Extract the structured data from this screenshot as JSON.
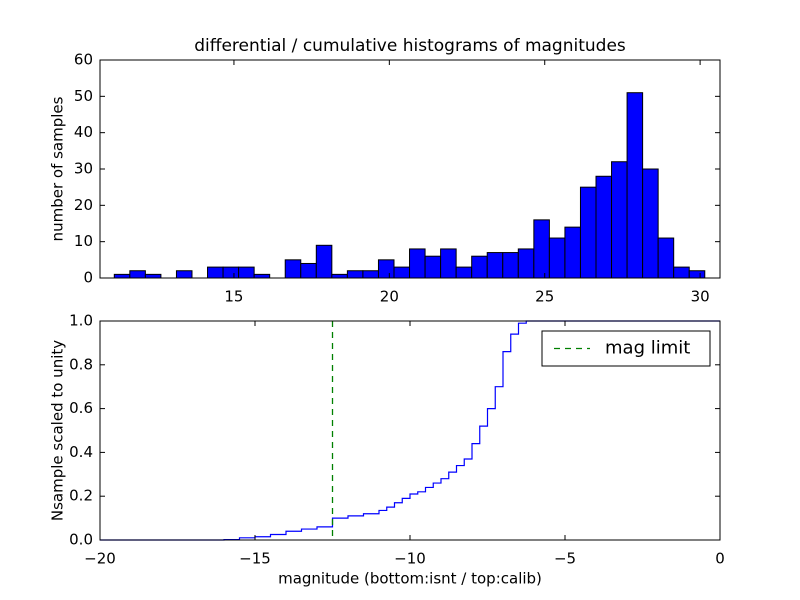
{
  "chart_data": [
    {
      "type": "histogram",
      "title": "differential / cumulative histograms of magnitudes",
      "y_label": "number of samples",
      "bins": [
        11.15,
        11.65,
        12.15,
        12.65,
        13.15,
        13.65,
        14.15,
        14.65,
        15.15,
        15.65,
        16.15,
        16.65,
        17.15,
        17.65,
        18.15,
        18.65,
        19.15,
        19.65,
        20.15,
        20.65,
        21.15,
        21.65,
        22.15,
        22.65,
        23.15,
        23.65,
        24.15,
        24.65,
        25.15,
        25.65,
        26.15,
        26.65,
        27.15,
        27.65,
        28.15,
        28.65,
        29.15,
        29.65,
        30.15
      ],
      "values": [
        1,
        2,
        1,
        0,
        2,
        0,
        3,
        3,
        3,
        1,
        0,
        5,
        4,
        9,
        1,
        2,
        2,
        5,
        3,
        8,
        6,
        8,
        3,
        6,
        7,
        7,
        8,
        16,
        11,
        14,
        25,
        28,
        32,
        51,
        30,
        11,
        3,
        2
      ],
      "color": "#0000ff",
      "xlim": [
        10.69,
        30.64
      ],
      "xticks": [
        15,
        20,
        25,
        30
      ],
      "ylim": [
        0,
        60
      ],
      "yticks": [
        0,
        10,
        20,
        30,
        40,
        50,
        60
      ]
    },
    {
      "type": "line",
      "drawstyle": "steps-post",
      "x_label": "magnitude (bottom:isnt / top:calib)",
      "y_label": "Nsample scaled to unity",
      "x": [
        -20,
        -16,
        -15.5,
        -15,
        -14.5,
        -14,
        -13.5,
        -13,
        -12.5,
        -12,
        -11.5,
        -11,
        -10.75,
        -10.5,
        -10.25,
        -10,
        -9.75,
        -9.5,
        -9.25,
        -9,
        -8.75,
        -8.5,
        -8.25,
        -8,
        -7.75,
        -7.5,
        -7.25,
        -7,
        -6.75,
        -6.5,
        -6.25,
        0
      ],
      "values": [
        0,
        0.002,
        0.01,
        0.015,
        0.025,
        0.04,
        0.05,
        0.06,
        0.1,
        0.11,
        0.12,
        0.135,
        0.15,
        0.17,
        0.19,
        0.21,
        0.22,
        0.24,
        0.26,
        0.28,
        0.31,
        0.34,
        0.37,
        0.44,
        0.52,
        0.6,
        0.7,
        0.86,
        0.94,
        0.99,
        1,
        1
      ],
      "color": "#0000ff",
      "vlines": [
        {
          "name": "mag limit",
          "x": -12.5,
          "color": "#008000",
          "style": "dashed"
        }
      ],
      "legend": "upper right",
      "xlim": [
        -20,
        0
      ],
      "xticks": [
        {
          "value": -20,
          "label": "−20"
        },
        {
          "value": -15,
          "label": "−15"
        },
        {
          "value": -10,
          "label": "−10"
        },
        {
          "value": -5,
          "label": "−5"
        },
        {
          "value": 0,
          "label": "0"
        }
      ],
      "ylim": [
        0,
        1
      ],
      "yticks": [
        {
          "value": 0,
          "label": "0.0"
        },
        0.2,
        0.4,
        0.6,
        0.8,
        {
          "value": 1,
          "label": "1.0"
        }
      ]
    }
  ]
}
